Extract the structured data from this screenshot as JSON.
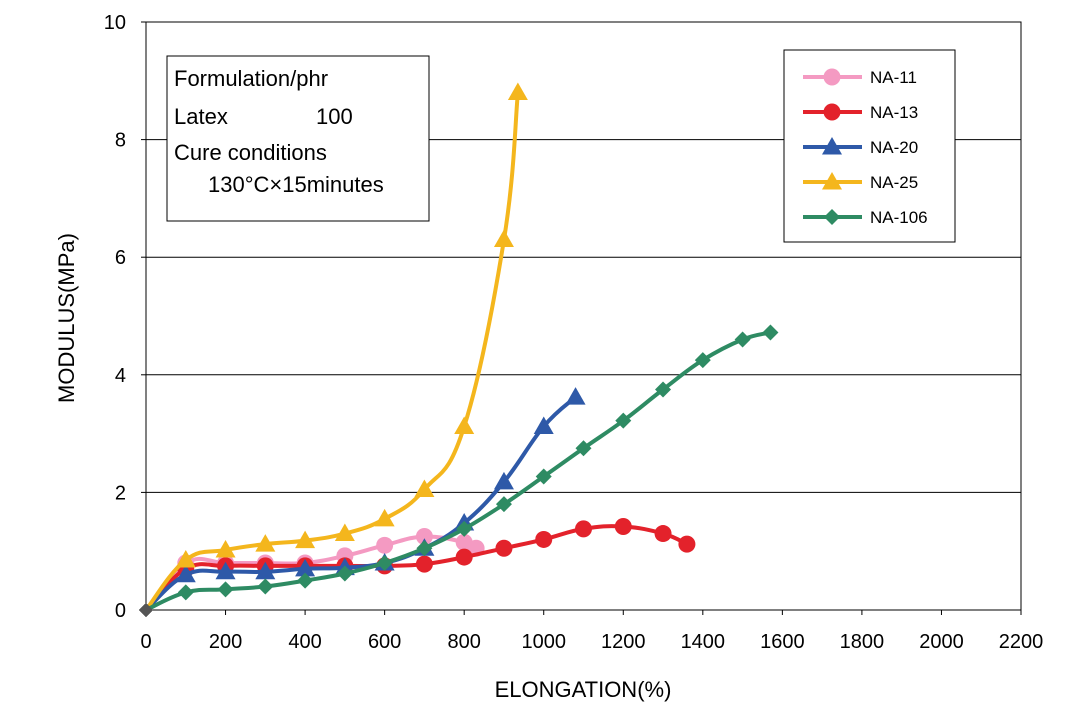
{
  "chart_data": {
    "type": "line",
    "title": "",
    "xlabel": "ELONGATION(%)",
    "ylabel": "MODULUS(MPa)",
    "xlim": [
      0,
      2200
    ],
    "ylim": [
      0,
      10
    ],
    "x_ticks": [
      "0",
      "200",
      "400",
      "600",
      "800",
      "1000",
      "1200",
      "1400",
      "1600",
      "1800",
      "2000",
      "2200"
    ],
    "y_ticks": [
      "0",
      "2",
      "4",
      "6",
      "8",
      "10"
    ],
    "grid": "horizontal",
    "legend_position": "top-right",
    "annotation": {
      "line1": "Formulation/phr",
      "line2_label": "Latex",
      "line2_value": "100",
      "line3": "Cure conditions",
      "line4": "130°C×15minutes"
    },
    "series": [
      {
        "name": "NA-11",
        "color": "#f49ac2",
        "marker": "circle",
        "points": [
          [
            0,
            0
          ],
          [
            100,
            0.8
          ],
          [
            200,
            0.8
          ],
          [
            300,
            0.8
          ],
          [
            400,
            0.8
          ],
          [
            500,
            0.92
          ],
          [
            600,
            1.1
          ],
          [
            700,
            1.25
          ],
          [
            800,
            1.15
          ],
          [
            830,
            1.05
          ]
        ]
      },
      {
        "name": "NA-13",
        "color": "#e3222b",
        "marker": "circle",
        "points": [
          [
            0,
            0
          ],
          [
            100,
            0.7
          ],
          [
            200,
            0.75
          ],
          [
            300,
            0.75
          ],
          [
            400,
            0.75
          ],
          [
            500,
            0.75
          ],
          [
            600,
            0.75
          ],
          [
            700,
            0.78
          ],
          [
            800,
            0.9
          ],
          [
            900,
            1.05
          ],
          [
            1000,
            1.2
          ],
          [
            1100,
            1.38
          ],
          [
            1200,
            1.42
          ],
          [
            1300,
            1.3
          ],
          [
            1360,
            1.12
          ]
        ]
      },
      {
        "name": "NA-20",
        "color": "#2e59a8",
        "marker": "triangle",
        "points": [
          [
            0,
            0
          ],
          [
            100,
            0.6
          ],
          [
            200,
            0.65
          ],
          [
            300,
            0.65
          ],
          [
            400,
            0.7
          ],
          [
            500,
            0.72
          ],
          [
            600,
            0.8
          ],
          [
            700,
            1.05
          ],
          [
            800,
            1.48
          ],
          [
            900,
            2.18
          ],
          [
            1000,
            3.12
          ],
          [
            1080,
            3.62
          ]
        ]
      },
      {
        "name": "NA-25",
        "color": "#f4b61d",
        "marker": "triangle",
        "points": [
          [
            0,
            0
          ],
          [
            100,
            0.85
          ],
          [
            200,
            1.02
          ],
          [
            300,
            1.12
          ],
          [
            400,
            1.18
          ],
          [
            500,
            1.3
          ],
          [
            600,
            1.55
          ],
          [
            700,
            2.05
          ],
          [
            800,
            3.12
          ],
          [
            900,
            6.3
          ],
          [
            935,
            8.8
          ]
        ]
      },
      {
        "name": "NA-106",
        "color": "#2e8b63",
        "marker": "diamond",
        "points": [
          [
            0,
            0
          ],
          [
            100,
            0.3
          ],
          [
            200,
            0.35
          ],
          [
            300,
            0.4
          ],
          [
            400,
            0.5
          ],
          [
            500,
            0.62
          ],
          [
            600,
            0.8
          ],
          [
            700,
            1.05
          ],
          [
            800,
            1.38
          ],
          [
            900,
            1.8
          ],
          [
            1000,
            2.27
          ],
          [
            1100,
            2.75
          ],
          [
            1200,
            3.22
          ],
          [
            1300,
            3.75
          ],
          [
            1400,
            4.25
          ],
          [
            1500,
            4.6
          ],
          [
            1570,
            4.72
          ]
        ]
      }
    ]
  }
}
